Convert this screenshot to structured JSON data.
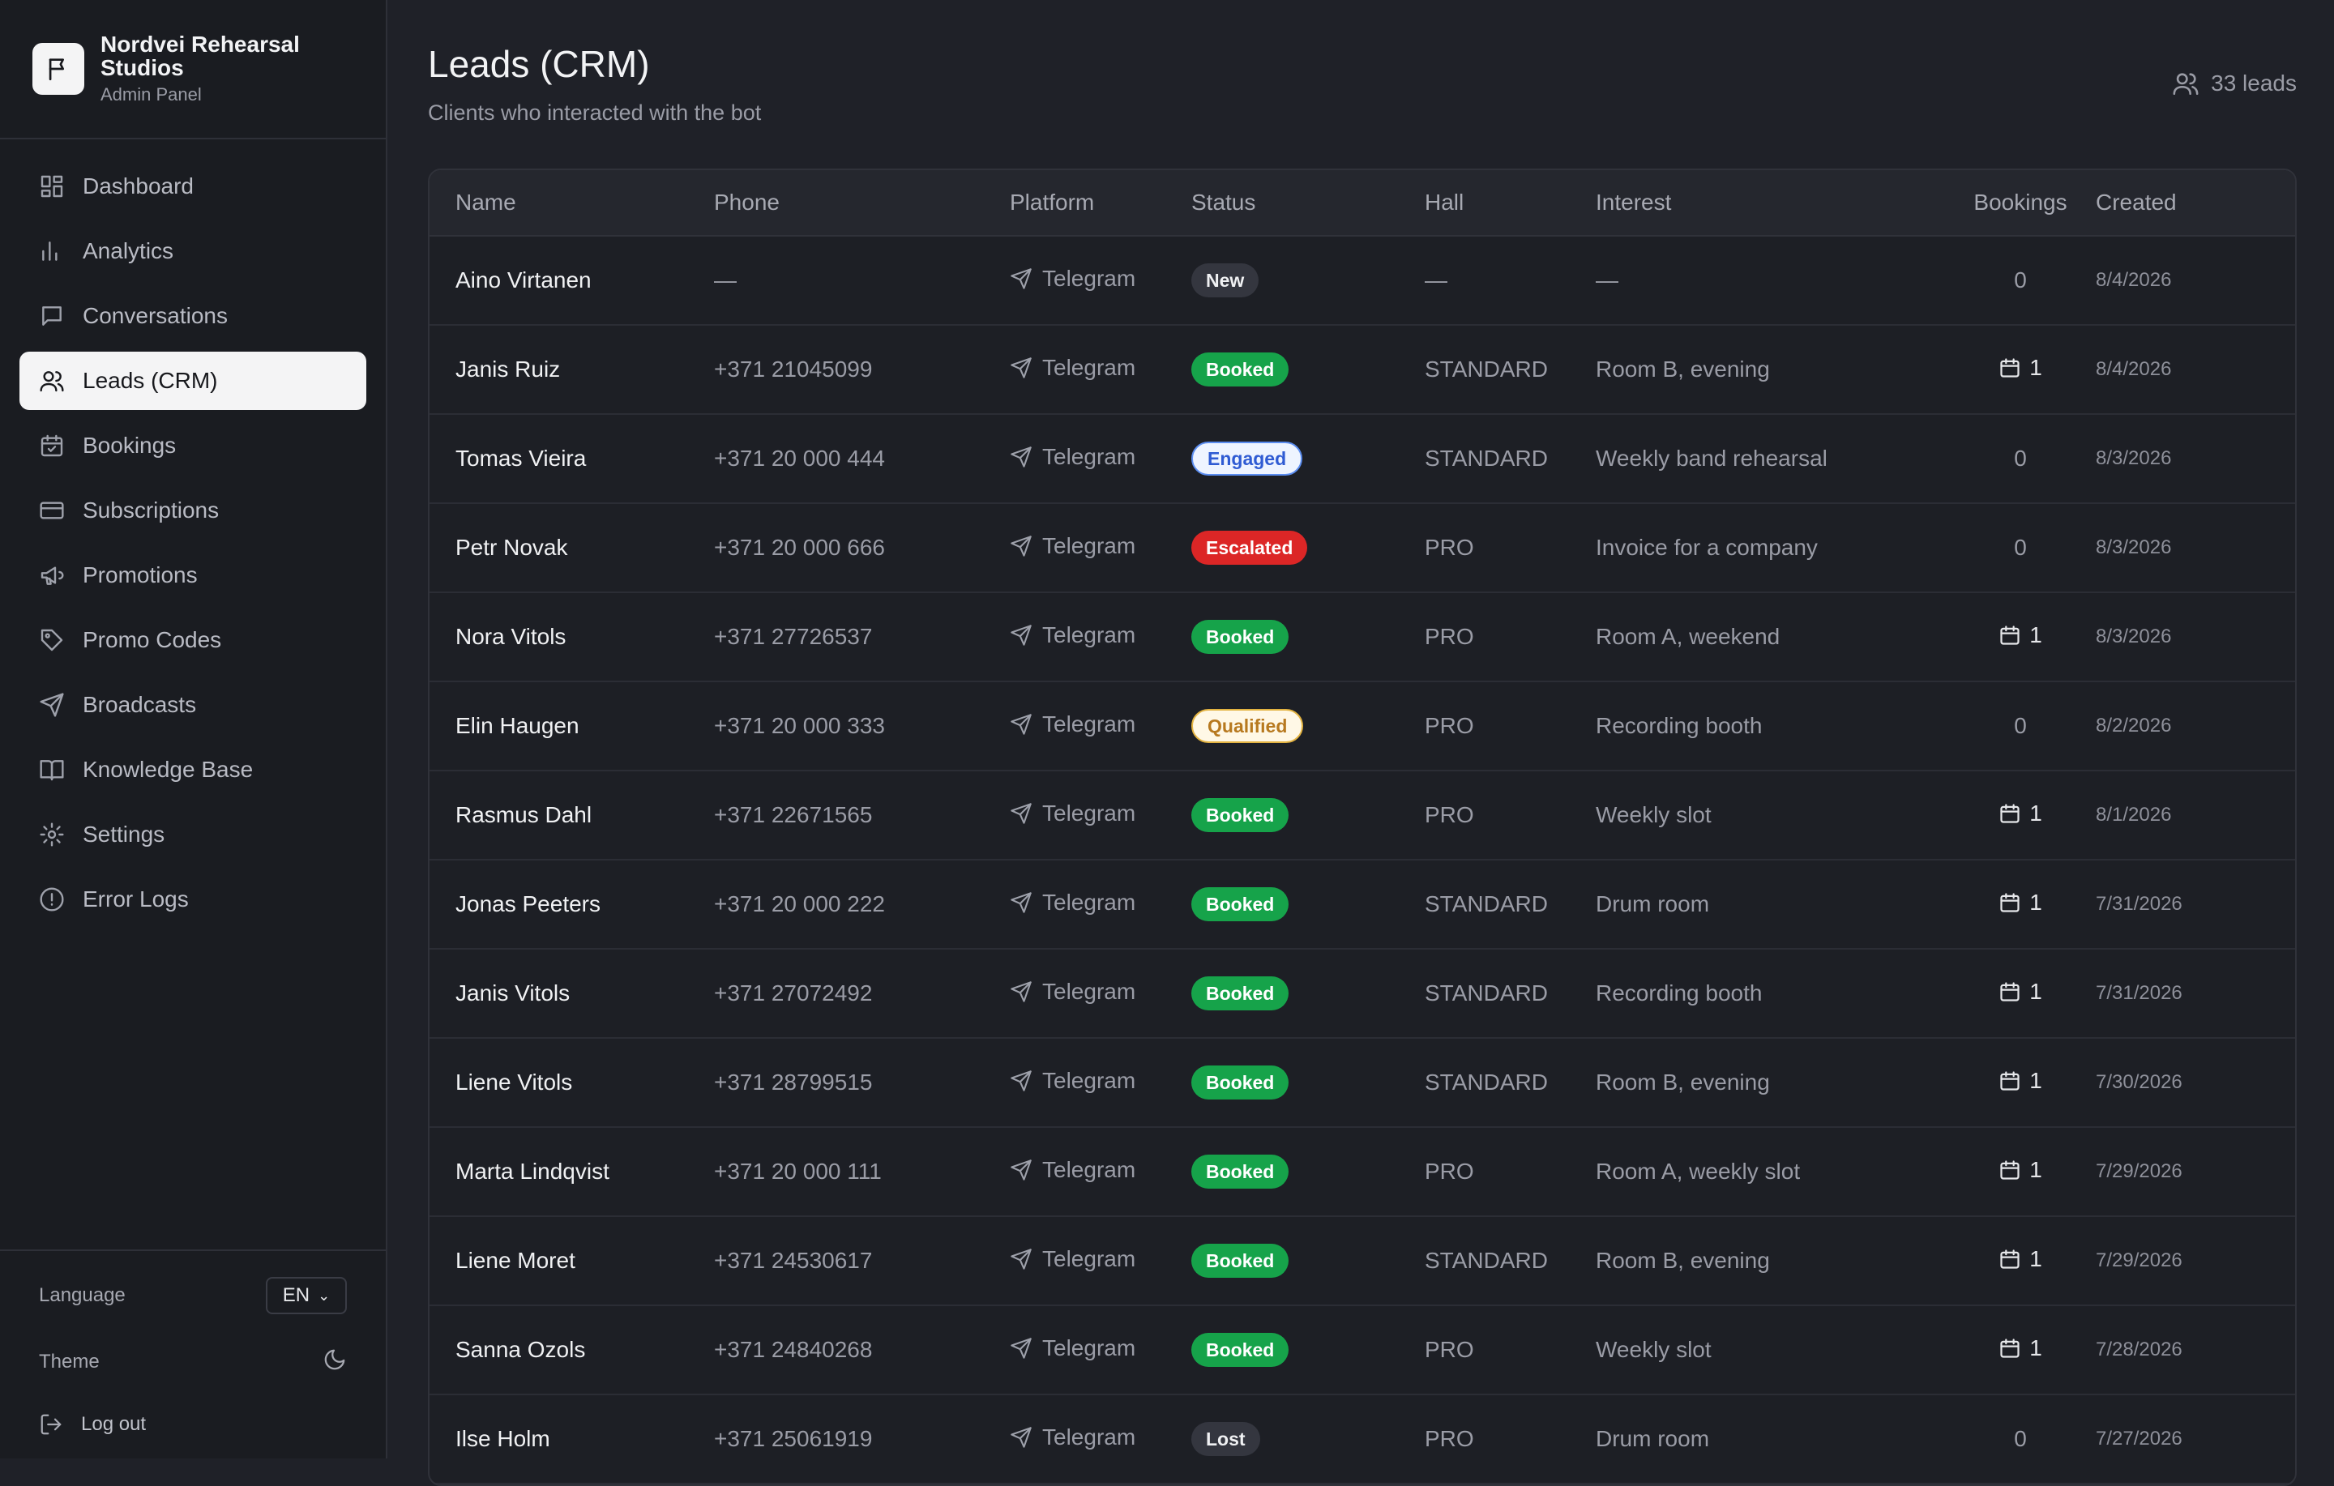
{
  "brand": {
    "name": "Nordvei Rehearsal Studios",
    "subtitle": "Admin Panel",
    "logo_icon": "flag-icon"
  },
  "nav": [
    {
      "label": "Dashboard",
      "icon": "dashboard-icon",
      "active": false
    },
    {
      "label": "Analytics",
      "icon": "bar-chart-icon",
      "active": false
    },
    {
      "label": "Conversations",
      "icon": "message-icon",
      "active": false
    },
    {
      "label": "Leads (CRM)",
      "icon": "users-icon",
      "active": true
    },
    {
      "label": "Bookings",
      "icon": "calendar-check-icon",
      "active": false
    },
    {
      "label": "Subscriptions",
      "icon": "credit-card-icon",
      "active": false
    },
    {
      "label": "Promotions",
      "icon": "megaphone-icon",
      "active": false
    },
    {
      "label": "Promo Codes",
      "icon": "tag-icon",
      "active": false
    },
    {
      "label": "Broadcasts",
      "icon": "send-icon",
      "active": false
    },
    {
      "label": "Knowledge Base",
      "icon": "book-icon",
      "active": false
    },
    {
      "label": "Settings",
      "icon": "gear-icon",
      "active": false
    },
    {
      "label": "Error Logs",
      "icon": "alert-circle-icon",
      "active": false
    }
  ],
  "footer": {
    "language_label": "Language",
    "language_value": "EN",
    "theme_label": "Theme",
    "theme_icon": "moon-icon",
    "logout_label": "Log out"
  },
  "page": {
    "title": "Leads (CRM)",
    "subtitle": "Clients who interacted with the bot",
    "count": "33 leads"
  },
  "table": {
    "columns": [
      "Name",
      "Phone",
      "Platform",
      "Status",
      "Hall",
      "Interest",
      "Bookings",
      "Created"
    ],
    "rows": [
      {
        "name": "Aino Virtanen",
        "phone": "—",
        "platform": "Telegram",
        "status": "New",
        "hall": "—",
        "interest": "—",
        "bookings": "0",
        "created": "8/4/2026"
      },
      {
        "name": "Janis Ruiz",
        "phone": "+371 21045099",
        "platform": "Telegram",
        "status": "Booked",
        "hall": "STANDARD",
        "interest": "Room B, evening",
        "bookings": "1",
        "created": "8/4/2026"
      },
      {
        "name": "Tomas Vieira",
        "phone": "+371 20 000 444",
        "platform": "Telegram",
        "status": "Engaged",
        "hall": "STANDARD",
        "interest": "Weekly band rehearsal",
        "bookings": "0",
        "created": "8/3/2026"
      },
      {
        "name": "Petr Novak",
        "phone": "+371 20 000 666",
        "platform": "Telegram",
        "status": "Escalated",
        "hall": "PRO",
        "interest": "Invoice for a company",
        "bookings": "0",
        "created": "8/3/2026"
      },
      {
        "name": "Nora Vitols",
        "phone": "+371 27726537",
        "platform": "Telegram",
        "status": "Booked",
        "hall": "PRO",
        "interest": "Room A, weekend",
        "bookings": "1",
        "created": "8/3/2026"
      },
      {
        "name": "Elin Haugen",
        "phone": "+371 20 000 333",
        "platform": "Telegram",
        "status": "Qualified",
        "hall": "PRO",
        "interest": "Recording booth",
        "bookings": "0",
        "created": "8/2/2026"
      },
      {
        "name": "Rasmus Dahl",
        "phone": "+371 22671565",
        "platform": "Telegram",
        "status": "Booked",
        "hall": "PRO",
        "interest": "Weekly slot",
        "bookings": "1",
        "created": "8/1/2026"
      },
      {
        "name": "Jonas Peeters",
        "phone": "+371 20 000 222",
        "platform": "Telegram",
        "status": "Booked",
        "hall": "STANDARD",
        "interest": "Drum room",
        "bookings": "1",
        "created": "7/31/2026"
      },
      {
        "name": "Janis Vitols",
        "phone": "+371 27072492",
        "platform": "Telegram",
        "status": "Booked",
        "hall": "STANDARD",
        "interest": "Recording booth",
        "bookings": "1",
        "created": "7/31/2026"
      },
      {
        "name": "Liene Vitols",
        "phone": "+371 28799515",
        "platform": "Telegram",
        "status": "Booked",
        "hall": "STANDARD",
        "interest": "Room B, evening",
        "bookings": "1",
        "created": "7/30/2026"
      },
      {
        "name": "Marta Lindqvist",
        "phone": "+371 20 000 111",
        "platform": "Telegram",
        "status": "Booked",
        "hall": "PRO",
        "interest": "Room A, weekly slot",
        "bookings": "1",
        "created": "7/29/2026"
      },
      {
        "name": "Liene Moret",
        "phone": "+371 24530617",
        "platform": "Telegram",
        "status": "Booked",
        "hall": "STANDARD",
        "interest": "Room B, evening",
        "bookings": "1",
        "created": "7/29/2026"
      },
      {
        "name": "Sanna Ozols",
        "phone": "+371 24840268",
        "platform": "Telegram",
        "status": "Booked",
        "hall": "PRO",
        "interest": "Weekly slot",
        "bookings": "1",
        "created": "7/28/2026"
      },
      {
        "name": "Ilse Holm",
        "phone": "+371 25061919",
        "platform": "Telegram",
        "status": "Lost",
        "hall": "PRO",
        "interest": "Drum room",
        "bookings": "0",
        "created": "7/27/2026"
      }
    ]
  },
  "colors": {
    "background": "#1f2128",
    "sidebar": "#1a1c21",
    "booked": "#16a34a",
    "escalated": "#dc2626",
    "engaged": "#2f5bd3",
    "qualified": "#b7791f"
  }
}
